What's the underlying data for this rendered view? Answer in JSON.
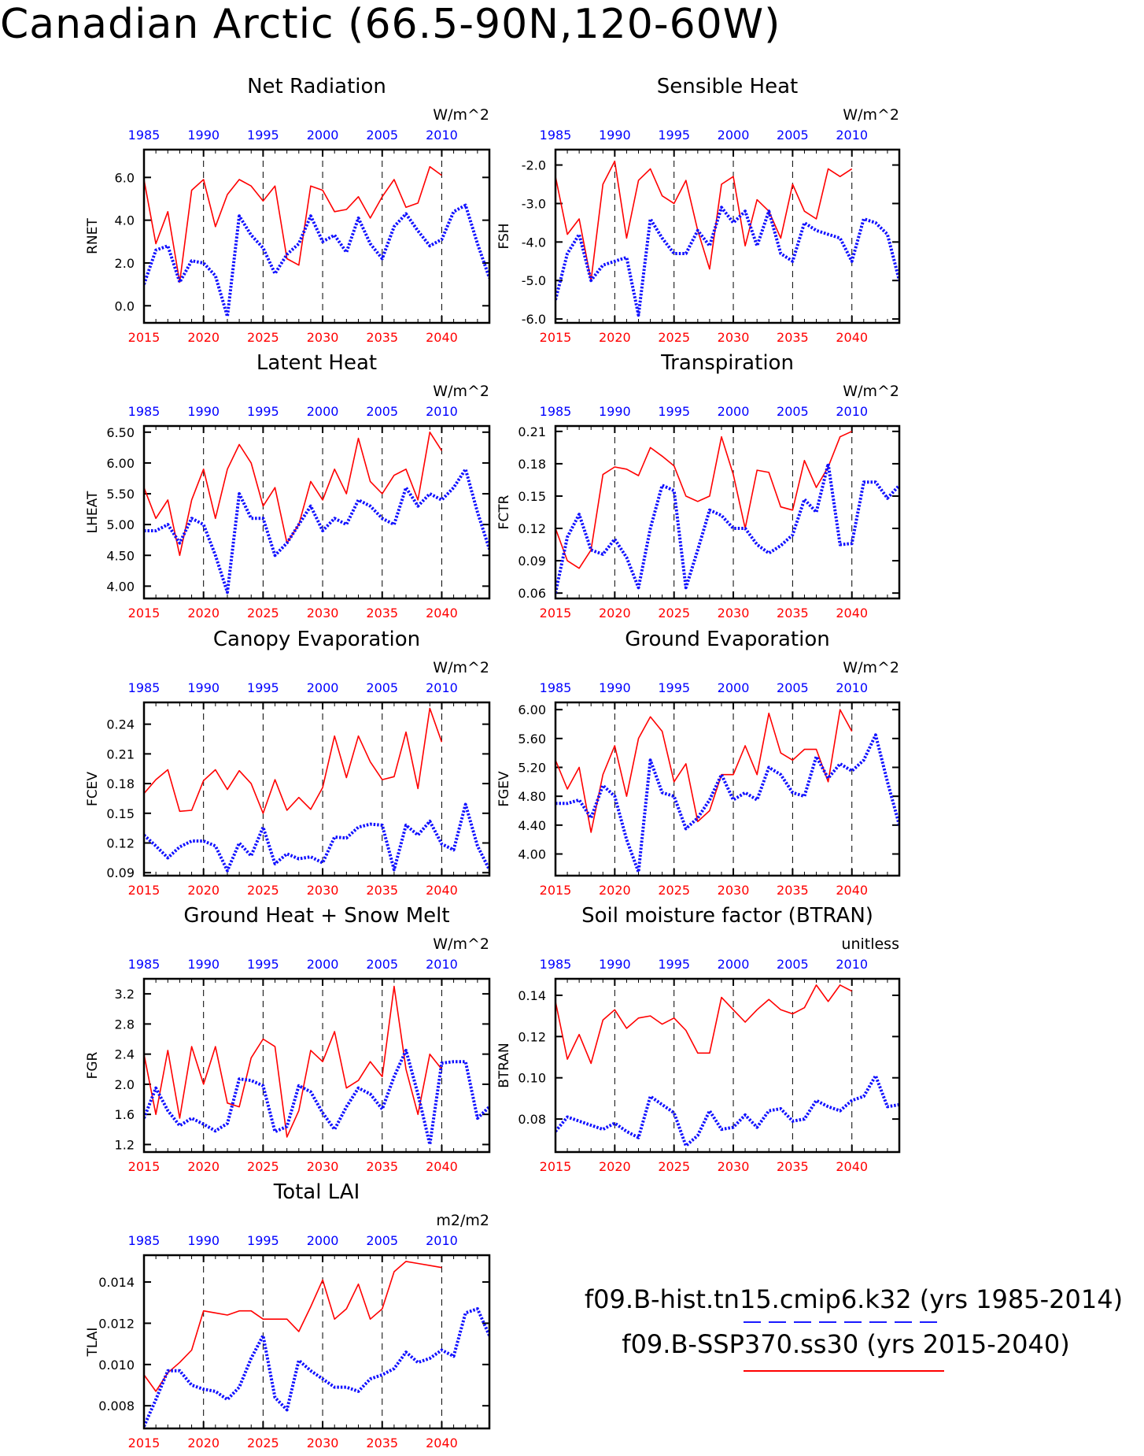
{
  "page": {
    "title": "Canadian Arctic (66.5-90N,120-60W)"
  },
  "legend": {
    "series": [
      {
        "label": "f09.B-hist.tn15.cmip6.k32 (yrs 1985-2014)",
        "color": "#1a1aff",
        "style": "dashed"
      },
      {
        "label": "f09.B-SSP370.ss30 (yrs 2015-2040)",
        "color": "#ff0000",
        "style": "solid"
      }
    ]
  },
  "axes_common": {
    "bottom_ticks": [
      "2015",
      "2020",
      "2025",
      "2030",
      "2035",
      "2040"
    ],
    "top_ticks": [
      "1985",
      "1990",
      "1995",
      "2000",
      "2005",
      "2010"
    ],
    "bottom_color": "#ff0000",
    "top_color": "#0000ff",
    "line_red": "#ff0000",
    "line_blue": "#1010ff"
  },
  "chart_data": [
    {
      "type": "line",
      "title": "Net Radiation",
      "ylabel": "RNET",
      "units": "W/m^2",
      "ylim": [
        -0.8,
        7.3
      ],
      "yticks": [
        0.0,
        2.0,
        4.0,
        6.0
      ],
      "ytick_labels": [
        "0.0",
        "2.0",
        "4.0",
        "6.0"
      ],
      "series": [
        {
          "name": "f09.B-SSP370.ss30",
          "x_start": 2015,
          "values": [
            5.9,
            2.9,
            4.4,
            1.1,
            5.4,
            5.9,
            3.7,
            5.2,
            5.9,
            5.6,
            4.9,
            5.6,
            2.2,
            1.9,
            5.6,
            5.4,
            4.4,
            4.5,
            5.1,
            4.1,
            5.1,
            5.9,
            4.6,
            4.8,
            6.5,
            6.1
          ]
        },
        {
          "name": "f09.B-hist.tn15.cmip6.k32",
          "x_start": 2015,
          "values": [
            1.0,
            2.6,
            2.8,
            1.1,
            2.1,
            2.0,
            1.4,
            -0.5,
            4.2,
            3.3,
            2.7,
            1.5,
            2.4,
            2.9,
            4.2,
            3.0,
            3.3,
            2.5,
            4.1,
            2.9,
            2.2,
            3.7,
            4.3,
            3.5,
            2.8,
            3.1,
            4.4,
            4.7,
            2.9,
            1.3
          ]
        }
      ]
    },
    {
      "type": "line",
      "title": "Sensible Heat",
      "ylabel": "FSH",
      "units": "W/m^2",
      "ylim": [
        -6.1,
        -1.6
      ],
      "yticks": [
        -6.0,
        -5.0,
        -4.0,
        -3.0,
        -2.0
      ],
      "ytick_labels": [
        "-6.0",
        "-5.0",
        "-4.0",
        "-3.0",
        "-2.0"
      ],
      "series": [
        {
          "name": "f09.B-SSP370.ss30",
          "x_start": 2015,
          "values": [
            -2.3,
            -3.8,
            -3.4,
            -5.0,
            -2.5,
            -1.9,
            -3.9,
            -2.4,
            -2.1,
            -2.8,
            -3.0,
            -2.4,
            -3.7,
            -4.7,
            -2.5,
            -2.3,
            -4.1,
            -2.9,
            -3.2,
            -3.9,
            -2.5,
            -3.2,
            -3.4,
            -2.1,
            -2.3,
            -2.1
          ]
        },
        {
          "name": "f09.B-hist.tn15.cmip6.k32",
          "x_start": 2015,
          "values": [
            -5.5,
            -4.3,
            -3.8,
            -5.0,
            -4.6,
            -4.5,
            -4.4,
            -5.9,
            -3.4,
            -3.9,
            -4.3,
            -4.3,
            -3.7,
            -4.1,
            -3.1,
            -3.5,
            -3.2,
            -4.1,
            -3.2,
            -4.3,
            -4.5,
            -3.5,
            -3.7,
            -3.8,
            -3.9,
            -4.5,
            -3.4,
            -3.5,
            -3.8,
            -5.0
          ]
        }
      ]
    },
    {
      "type": "line",
      "title": "Latent Heat",
      "ylabel": "LHEAT",
      "units": "W/m^2",
      "ylim": [
        3.8,
        6.6
      ],
      "yticks": [
        4.0,
        4.5,
        5.0,
        5.5,
        6.0,
        6.5
      ],
      "ytick_labels": [
        "4.00",
        "4.50",
        "5.00",
        "5.50",
        "6.00",
        "6.50"
      ],
      "series": [
        {
          "name": "f09.B-SSP370.ss30",
          "x_start": 2015,
          "values": [
            5.6,
            5.1,
            5.4,
            4.5,
            5.4,
            5.9,
            5.1,
            5.9,
            6.3,
            6.0,
            5.3,
            5.6,
            4.7,
            5.0,
            5.7,
            5.4,
            5.9,
            5.5,
            6.4,
            5.7,
            5.5,
            5.8,
            5.9,
            5.4,
            6.5,
            6.2
          ]
        },
        {
          "name": "f09.B-hist.tn15.cmip6.k32",
          "x_start": 2015,
          "values": [
            4.9,
            4.9,
            5.0,
            4.7,
            5.1,
            5.0,
            4.5,
            3.9,
            5.5,
            5.1,
            5.1,
            4.5,
            4.7,
            5.0,
            5.3,
            4.9,
            5.1,
            5.0,
            5.4,
            5.3,
            5.1,
            5.0,
            5.6,
            5.3,
            5.5,
            5.4,
            5.6,
            5.9,
            5.2,
            4.6
          ]
        }
      ]
    },
    {
      "type": "line",
      "title": "Transpiration",
      "ylabel": "FCTR",
      "units": "W/m^2",
      "ylim": [
        0.055,
        0.215
      ],
      "yticks": [
        0.06,
        0.09,
        0.12,
        0.15,
        0.18,
        0.21
      ],
      "ytick_labels": [
        "0.06",
        "0.09",
        "0.12",
        "0.15",
        "0.18",
        "0.21"
      ],
      "series": [
        {
          "name": "f09.B-SSP370.ss30",
          "x_start": 2015,
          "values": [
            0.12,
            0.09,
            0.083,
            0.1,
            0.17,
            0.177,
            0.175,
            0.169,
            0.195,
            0.187,
            0.178,
            0.15,
            0.145,
            0.15,
            0.205,
            0.17,
            0.12,
            0.174,
            0.172,
            0.14,
            0.137,
            0.183,
            0.158,
            0.177,
            0.205,
            0.21
          ]
        },
        {
          "name": "f09.B-hist.tn15.cmip6.k32",
          "x_start": 2015,
          "values": [
            0.06,
            0.112,
            0.133,
            0.1,
            0.096,
            0.11,
            0.093,
            0.065,
            0.12,
            0.16,
            0.155,
            0.065,
            0.1,
            0.137,
            0.132,
            0.12,
            0.12,
            0.105,
            0.097,
            0.104,
            0.114,
            0.147,
            0.135,
            0.18,
            0.105,
            0.106,
            0.163,
            0.163,
            0.148,
            0.16
          ]
        }
      ]
    },
    {
      "type": "line",
      "title": "Canopy Evaporation",
      "ylabel": "FCEV",
      "units": "W/m^2",
      "ylim": [
        0.087,
        0.262
      ],
      "yticks": [
        0.09,
        0.12,
        0.15,
        0.18,
        0.21,
        0.24
      ],
      "ytick_labels": [
        "0.09",
        "0.12",
        "0.15",
        "0.18",
        "0.21",
        "0.24"
      ],
      "series": [
        {
          "name": "f09.B-SSP370.ss30",
          "x_start": 2015,
          "values": [
            0.17,
            0.184,
            0.194,
            0.152,
            0.153,
            0.183,
            0.194,
            0.174,
            0.193,
            0.18,
            0.15,
            0.184,
            0.153,
            0.166,
            0.154,
            0.176,
            0.228,
            0.186,
            0.228,
            0.202,
            0.184,
            0.187,
            0.232,
            0.175,
            0.256,
            0.222
          ]
        },
        {
          "name": "f09.B-hist.tn15.cmip6.k32",
          "x_start": 2015,
          "values": [
            0.128,
            0.117,
            0.105,
            0.116,
            0.122,
            0.122,
            0.117,
            0.092,
            0.12,
            0.107,
            0.136,
            0.099,
            0.109,
            0.104,
            0.106,
            0.1,
            0.126,
            0.125,
            0.136,
            0.139,
            0.138,
            0.093,
            0.138,
            0.128,
            0.142,
            0.119,
            0.113,
            0.159,
            0.117,
            0.093
          ]
        }
      ]
    },
    {
      "type": "line",
      "title": "Ground Evaporation",
      "ylabel": "FGEV",
      "units": "W/m^2",
      "ylim": [
        3.7,
        6.1
      ],
      "yticks": [
        4.0,
        4.4,
        4.8,
        5.2,
        5.6,
        6.0
      ],
      "ytick_labels": [
        "4.00",
        "4.40",
        "4.80",
        "5.20",
        "5.60",
        "6.00"
      ],
      "series": [
        {
          "name": "f09.B-SSP370.ss30",
          "x_start": 2015,
          "values": [
            5.3,
            4.9,
            5.2,
            4.3,
            5.1,
            5.5,
            4.8,
            5.6,
            5.9,
            5.7,
            5.0,
            5.25,
            4.45,
            4.6,
            5.1,
            5.1,
            5.5,
            5.1,
            5.95,
            5.4,
            5.3,
            5.45,
            5.45,
            5.0,
            6.0,
            5.7
          ]
        },
        {
          "name": "f09.B-hist.tn15.cmip6.k32",
          "x_start": 2015,
          "values": [
            4.7,
            4.7,
            4.75,
            4.5,
            4.95,
            4.8,
            4.2,
            3.75,
            5.3,
            4.85,
            4.8,
            4.35,
            4.5,
            4.75,
            5.1,
            4.75,
            4.85,
            4.75,
            5.2,
            5.1,
            4.85,
            4.8,
            5.35,
            5.05,
            5.25,
            5.15,
            5.3,
            5.65,
            5.0,
            4.4
          ]
        }
      ]
    },
    {
      "type": "line",
      "title": "Ground Heat + Snow Melt",
      "ylabel": "FGR",
      "units": "W/m^2",
      "ylim": [
        1.1,
        3.4
      ],
      "yticks": [
        1.2,
        1.6,
        2.0,
        2.4,
        2.8,
        3.2
      ],
      "ytick_labels": [
        "1.2",
        "1.6",
        "2.0",
        "2.4",
        "2.8",
        "3.2"
      ],
      "series": [
        {
          "name": "f09.B-SSP370.ss30",
          "x_start": 2015,
          "values": [
            2.4,
            1.6,
            2.45,
            1.55,
            2.5,
            2.0,
            2.5,
            1.75,
            1.7,
            2.35,
            2.6,
            2.5,
            1.3,
            1.65,
            2.45,
            2.3,
            2.7,
            1.95,
            2.05,
            2.3,
            2.1,
            3.3,
            2.2,
            1.6,
            2.4,
            2.2
          ]
        },
        {
          "name": "f09.B-hist.tn15.cmip6.k32",
          "x_start": 2015,
          "values": [
            1.55,
            1.95,
            1.65,
            1.45,
            1.55,
            1.47,
            1.38,
            1.48,
            2.07,
            2.05,
            1.98,
            1.37,
            1.44,
            1.98,
            1.9,
            1.62,
            1.4,
            1.7,
            1.95,
            1.87,
            1.67,
            2.1,
            2.45,
            1.87,
            1.2,
            2.28,
            2.3,
            2.3,
            1.55,
            1.7
          ]
        }
      ]
    },
    {
      "type": "line",
      "title": "Soil moisture factor (BTRAN)",
      "ylabel": "BTRAN",
      "units": "unitless",
      "ylim": [
        0.064,
        0.148
      ],
      "yticks": [
        0.08,
        0.1,
        0.12,
        0.14
      ],
      "ytick_labels": [
        "0.08",
        "0.10",
        "0.12",
        "0.14"
      ],
      "series": [
        {
          "name": "f09.B-SSP370.ss30",
          "x_start": 2015,
          "values": [
            0.137,
            0.109,
            0.121,
            0.107,
            0.128,
            0.133,
            0.124,
            0.129,
            0.13,
            0.126,
            0.129,
            0.123,
            0.112,
            0.112,
            0.139,
            0.133,
            0.127,
            0.133,
            0.138,
            0.133,
            0.131,
            0.134,
            0.145,
            0.137,
            0.145,
            0.142
          ]
        },
        {
          "name": "f09.B-hist.tn15.cmip6.k32",
          "x_start": 2015,
          "values": [
            0.074,
            0.081,
            0.079,
            0.077,
            0.075,
            0.078,
            0.074,
            0.071,
            0.091,
            0.087,
            0.083,
            0.067,
            0.072,
            0.084,
            0.075,
            0.076,
            0.082,
            0.076,
            0.084,
            0.085,
            0.079,
            0.08,
            0.089,
            0.086,
            0.084,
            0.089,
            0.091,
            0.101,
            0.086,
            0.087
          ]
        }
      ]
    },
    {
      "type": "line",
      "title": "Total LAI",
      "ylabel": "TLAI",
      "units": "m2/m2",
      "ylim": [
        0.0069,
        0.0153
      ],
      "yticks": [
        0.008,
        0.01,
        0.012,
        0.014
      ],
      "ytick_labels": [
        "0.008",
        "0.010",
        "0.012",
        "0.014"
      ],
      "series": [
        {
          "name": "f09.B-SSP370.ss30",
          "x_start": 2015,
          "values": [
            0.0095,
            0.0087,
            0.0096,
            0.0101,
            0.0107,
            0.0126,
            0.0125,
            0.0124,
            0.0126,
            0.0126,
            0.0122,
            0.0122,
            0.0122,
            0.0116,
            0.0128,
            0.0141,
            0.0122,
            0.0127,
            0.0139,
            0.0122,
            0.0127,
            0.0145,
            0.015,
            0.0149,
            0.0148,
            0.0147
          ]
        },
        {
          "name": "f09.B-hist.tn15.cmip6.k32",
          "x_start": 2015,
          "values": [
            0.007,
            0.0083,
            0.0097,
            0.0097,
            0.009,
            0.0088,
            0.0087,
            0.0083,
            0.0089,
            0.0103,
            0.0114,
            0.0084,
            0.0078,
            0.0102,
            0.0097,
            0.0093,
            0.0089,
            0.0089,
            0.0087,
            0.0093,
            0.0095,
            0.0098,
            0.0106,
            0.0101,
            0.0103,
            0.0107,
            0.0104,
            0.0125,
            0.0127,
            0.0114
          ]
        }
      ]
    }
  ]
}
